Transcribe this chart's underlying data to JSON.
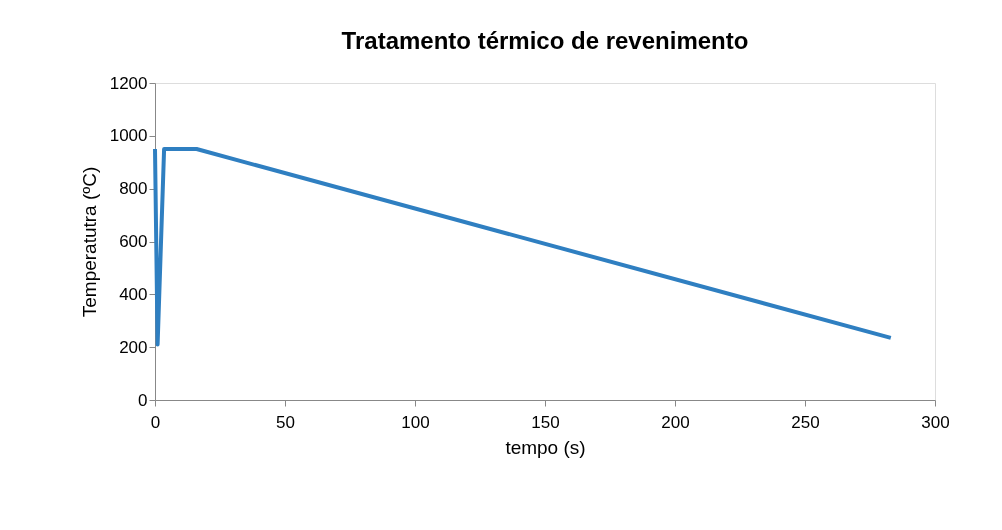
{
  "chart_data": {
    "type": "line",
    "title": "Tratamento térmico de revenimento",
    "xlabel": "tempo  (s)",
    "ylabel": "Temperatutra (ºC)",
    "x": [
      0,
      1,
      3.5,
      16,
      283
    ],
    "series": [
      {
        "color": "#2f7fc1",
        "values": [
          950,
          210,
          950,
          950,
          235
        ]
      }
    ],
    "xlim": [
      0,
      300
    ],
    "xticks": [
      0,
      50,
      100,
      150,
      200,
      250,
      300
    ],
    "ylim": [
      0,
      1200
    ],
    "yticks": [
      0,
      200,
      400,
      600,
      800,
      1000,
      1200
    ],
    "grid": false,
    "marker": "none",
    "line_style": "solid"
  }
}
